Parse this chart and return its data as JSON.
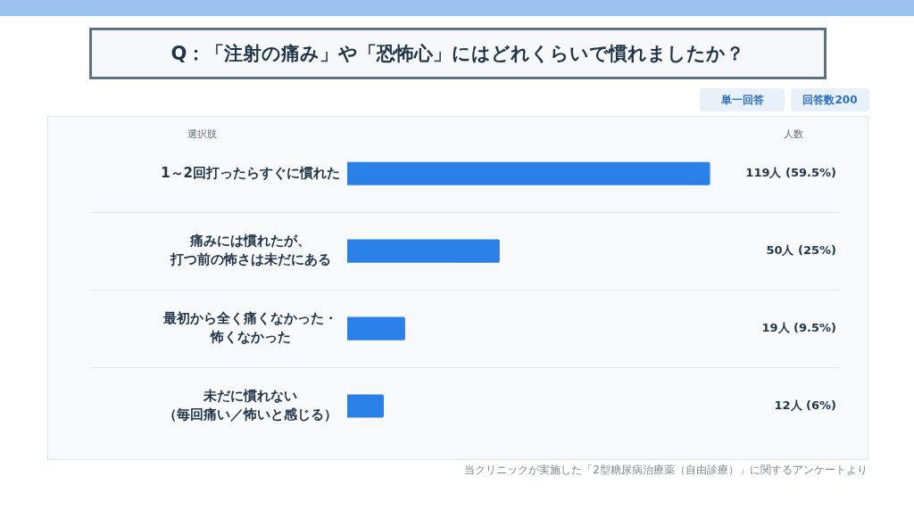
{
  "chart_data": {
    "type": "bar",
    "orientation": "horizontal",
    "title": "Q：「注射の痛み」や「恐怖心」にはどれくらいで慣れましたか？",
    "categories": [
      "1～2回打ったらすぐに慣れた",
      "痛みには慣れたが、打つ前の怖さは未だにある",
      "最初から全く痛くなかった・怖くなかった",
      "未だに慣れない（毎回痛い／怖いと感じる）"
    ],
    "series": [
      {
        "color": "#2b80e8",
        "values": [
          119,
          50,
          19,
          12
        ],
        "value_labels": [
          "119人 (59.5%)",
          "50人 (25%)",
          "19人 (9.5%)",
          "12人 (6%)"
        ]
      }
    ],
    "grid": "y",
    "annotations": [
      "選択肢",
      "人数",
      "単一回答",
      "回答数200",
      "当クリニックが実施した「2型糖尿病治療薬（自由診療）」に関するアンケートより"
    ]
  }
}
